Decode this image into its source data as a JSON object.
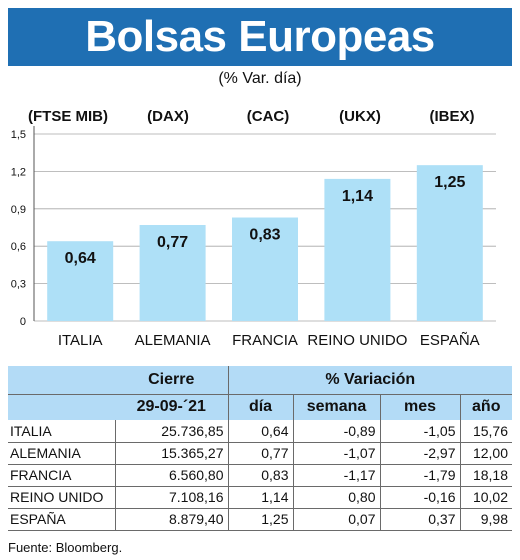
{
  "banner": {
    "title": "Bolsas Europeas"
  },
  "subtitle": "(% Var. día)",
  "colors": {
    "banner": "#1f6fb3",
    "bar": "#aee0f7",
    "table_header": "#b3dbf6"
  },
  "chart_data": {
    "type": "bar",
    "title": "Bolsas Europeas",
    "subtitle": "(% Var. día)",
    "categories": [
      "ITALIA",
      "ALEMANIA",
      "FRANCIA",
      "REINO UNIDO",
      "ESPAÑA"
    ],
    "index_labels": [
      "(FTSE MIB)",
      "(DAX)",
      "(CAC)",
      "(UKX)",
      "(IBEX)"
    ],
    "values": [
      0.64,
      0.77,
      0.83,
      1.14,
      1.25
    ],
    "value_labels": [
      "0,64",
      "0,77",
      "0,83",
      "1,14",
      "1,25"
    ],
    "yticks": [
      0,
      0.3,
      0.6,
      0.9,
      1.2,
      1.5
    ],
    "ytick_labels": [
      "0",
      "0,3",
      "0,6",
      "0,9",
      "1,2",
      "1,5"
    ],
    "ylim": [
      0,
      1.5
    ],
    "grid": true,
    "xlabel": "",
    "ylabel": ""
  },
  "table": {
    "header_top": [
      "Cierre",
      "% Variación"
    ],
    "header_sub": [
      "29-09-´21",
      "día",
      "semana",
      "mes",
      "año"
    ],
    "rows": [
      {
        "name": "ITALIA",
        "cierre": "25.736,85",
        "dia": "0,64",
        "semana": "-0,89",
        "mes": "-1,05",
        "anio": "15,76"
      },
      {
        "name": "ALEMANIA",
        "cierre": "15.365,27",
        "dia": "0,77",
        "semana": "-1,07",
        "mes": "-2,97",
        "anio": "12,00"
      },
      {
        "name": "FRANCIA",
        "cierre": "6.560,80",
        "dia": "0,83",
        "semana": "-1,17",
        "mes": "-1,79",
        "anio": "18,18"
      },
      {
        "name": "REINO UNIDO",
        "cierre": "7.108,16",
        "dia": "1,14",
        "semana": "0,80",
        "mes": "-0,16",
        "anio": "10,02"
      },
      {
        "name": "ESPAÑA",
        "cierre": "8.879,40",
        "dia": "1,25",
        "semana": "0,07",
        "mes": "0,37",
        "anio": "9,98"
      }
    ]
  },
  "source": "Fuente: Bloomberg."
}
